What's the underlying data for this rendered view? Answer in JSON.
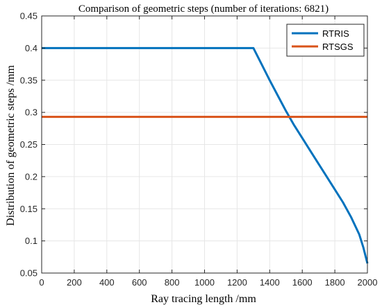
{
  "chart_data": {
    "type": "line",
    "title": "Comparison of geometric steps (number of iterations:  6821)",
    "xlabel": "Ray tracing length /mm",
    "ylabel": "Distribution of geometric steps /mm",
    "xlim": [
      0,
      2000
    ],
    "ylim": [
      0.05,
      0.45
    ],
    "xticks": [
      0,
      200,
      400,
      600,
      800,
      1000,
      1200,
      1400,
      1600,
      1800,
      2000
    ],
    "yticks": [
      0.05,
      0.1,
      0.15,
      0.2,
      0.25,
      0.3,
      0.35,
      0.4,
      0.45
    ],
    "xtick_labels": [
      "0",
      "200",
      "400",
      "600",
      "800",
      "1000",
      "1200",
      "1400",
      "1600",
      "1800",
      "2000"
    ],
    "ytick_labels": [
      "0.05",
      "0.1",
      "0.15",
      "0.2",
      "0.25",
      "0.3",
      "0.35",
      "0.4",
      "0.45"
    ],
    "grid": true,
    "legend_position": "top-right",
    "series": [
      {
        "name": "RTRIS",
        "color": "#0072BD",
        "x": [
          0,
          1300,
          1350,
          1400,
          1450,
          1500,
          1550,
          1600,
          1650,
          1700,
          1750,
          1800,
          1850,
          1900,
          1950,
          1975,
          2000
        ],
        "y": [
          0.4,
          0.4,
          0.375,
          0.35,
          0.326,
          0.302,
          0.28,
          0.26,
          0.24,
          0.22,
          0.2,
          0.18,
          0.16,
          0.137,
          0.11,
          0.09,
          0.065
        ]
      },
      {
        "name": "RTSGS",
        "color": "#D95319",
        "x": [
          0,
          2000
        ],
        "y": [
          0.293,
          0.293
        ]
      }
    ]
  }
}
